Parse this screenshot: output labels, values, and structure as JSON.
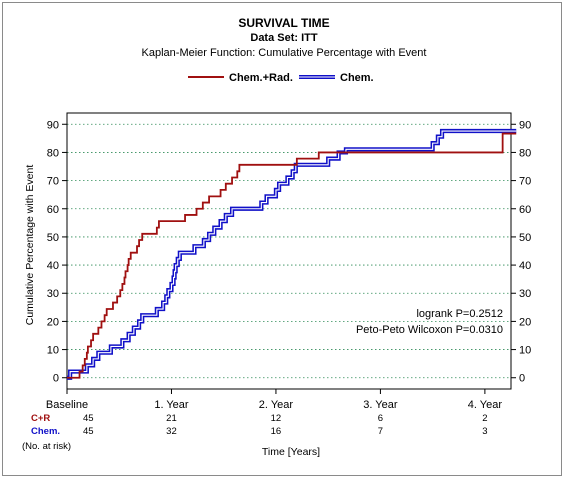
{
  "chart_data": {
    "type": "line",
    "title": "SURVIVAL TIME",
    "subtitle": "Data Set: ITT",
    "subtitle2": "Kaplan-Meier Function: Cumulative Percentage with Event",
    "xlabel": "Time [Years]",
    "ylabel": "Cumulative Percentage with Event",
    "xlim": [
      0,
      4.25
    ],
    "ylim": [
      0,
      90
    ],
    "xticks": [
      0,
      1,
      2,
      3,
      4
    ],
    "xtick_labels": [
      "Baseline",
      "1. Year",
      "2. Year",
      "3. Year",
      "4. Year"
    ],
    "yticks": [
      0,
      10,
      20,
      30,
      40,
      50,
      60,
      70,
      80,
      90
    ],
    "grid": "horizontal dotted",
    "legend_position": "top-center",
    "annotations": [
      "logrank P=0.2512",
      "Peto-Peto Wilcoxon P=0.0310"
    ],
    "series": [
      {
        "name": "Chem.+Rad.",
        "color": "#a01010",
        "step": true,
        "points": [
          [
            0,
            0
          ],
          [
            0.12,
            0
          ],
          [
            0.12,
            2.2
          ],
          [
            0.15,
            2.2
          ],
          [
            0.15,
            4.4
          ],
          [
            0.17,
            4.4
          ],
          [
            0.17,
            6.7
          ],
          [
            0.19,
            6.7
          ],
          [
            0.19,
            8.9
          ],
          [
            0.2,
            8.9
          ],
          [
            0.2,
            11.1
          ],
          [
            0.23,
            11.1
          ],
          [
            0.23,
            13.3
          ],
          [
            0.25,
            13.3
          ],
          [
            0.25,
            15.6
          ],
          [
            0.3,
            15.6
          ],
          [
            0.3,
            17.8
          ],
          [
            0.33,
            17.8
          ],
          [
            0.33,
            20
          ],
          [
            0.36,
            20
          ],
          [
            0.36,
            22.2
          ],
          [
            0.38,
            22.2
          ],
          [
            0.38,
            24.4
          ],
          [
            0.44,
            24.4
          ],
          [
            0.44,
            26.7
          ],
          [
            0.48,
            26.7
          ],
          [
            0.48,
            28.9
          ],
          [
            0.51,
            28.9
          ],
          [
            0.51,
            31.1
          ],
          [
            0.53,
            31.1
          ],
          [
            0.53,
            33.3
          ],
          [
            0.55,
            33.3
          ],
          [
            0.55,
            35.6
          ],
          [
            0.56,
            35.6
          ],
          [
            0.56,
            37.8
          ],
          [
            0.58,
            37.8
          ],
          [
            0.58,
            40
          ],
          [
            0.59,
            40
          ],
          [
            0.59,
            42.2
          ],
          [
            0.61,
            42.2
          ],
          [
            0.61,
            44.4
          ],
          [
            0.67,
            44.4
          ],
          [
            0.67,
            46.7
          ],
          [
            0.69,
            46.7
          ],
          [
            0.69,
            48.9
          ],
          [
            0.72,
            48.9
          ],
          [
            0.72,
            51.1
          ],
          [
            0.86,
            51.1
          ],
          [
            0.86,
            53.3
          ],
          [
            0.88,
            53.3
          ],
          [
            0.88,
            55.6
          ],
          [
            1.13,
            55.6
          ],
          [
            1.13,
            57.8
          ],
          [
            1.24,
            57.8
          ],
          [
            1.24,
            60
          ],
          [
            1.3,
            60
          ],
          [
            1.3,
            62.2
          ],
          [
            1.36,
            62.2
          ],
          [
            1.36,
            64.4
          ],
          [
            1.47,
            64.4
          ],
          [
            1.47,
            66.7
          ],
          [
            1.52,
            66.7
          ],
          [
            1.52,
            68.9
          ],
          [
            1.58,
            68.9
          ],
          [
            1.58,
            71.1
          ],
          [
            1.63,
            71.1
          ],
          [
            1.63,
            73.3
          ],
          [
            1.65,
            73.3
          ],
          [
            1.65,
            75.6
          ],
          [
            2.2,
            75.6
          ],
          [
            2.2,
            77.8
          ],
          [
            2.41,
            77.8
          ],
          [
            2.41,
            80
          ],
          [
            4.17,
            80
          ],
          [
            4.17,
            86.7
          ],
          [
            4.3,
            86.7
          ]
        ]
      },
      {
        "name": "Chem.",
        "color": "#1010c8",
        "step": true,
        "points": [
          [
            0,
            0
          ],
          [
            0.03,
            0
          ],
          [
            0.03,
            2.2
          ],
          [
            0.19,
            2.2
          ],
          [
            0.19,
            4.4
          ],
          [
            0.25,
            4.4
          ],
          [
            0.25,
            6.7
          ],
          [
            0.3,
            6.7
          ],
          [
            0.3,
            8.9
          ],
          [
            0.42,
            8.9
          ],
          [
            0.42,
            11.1
          ],
          [
            0.53,
            11.1
          ],
          [
            0.53,
            13.3
          ],
          [
            0.59,
            13.3
          ],
          [
            0.59,
            15.6
          ],
          [
            0.64,
            15.6
          ],
          [
            0.64,
            17.8
          ],
          [
            0.69,
            17.8
          ],
          [
            0.69,
            20
          ],
          [
            0.72,
            20
          ],
          [
            0.72,
            22.2
          ],
          [
            0.86,
            22.2
          ],
          [
            0.86,
            24.4
          ],
          [
            0.92,
            24.4
          ],
          [
            0.92,
            26.7
          ],
          [
            0.95,
            26.7
          ],
          [
            0.95,
            28.9
          ],
          [
            0.97,
            28.9
          ],
          [
            0.97,
            31.1
          ],
          [
            1.0,
            31.1
          ],
          [
            1.0,
            33.3
          ],
          [
            1.02,
            33.3
          ],
          [
            1.02,
            35.6
          ],
          [
            1.03,
            35.6
          ],
          [
            1.03,
            37.8
          ],
          [
            1.04,
            37.8
          ],
          [
            1.04,
            40
          ],
          [
            1.06,
            40
          ],
          [
            1.06,
            42.2
          ],
          [
            1.08,
            42.2
          ],
          [
            1.08,
            44.4
          ],
          [
            1.22,
            44.4
          ],
          [
            1.22,
            46.7
          ],
          [
            1.31,
            46.7
          ],
          [
            1.31,
            48.9
          ],
          [
            1.36,
            48.9
          ],
          [
            1.36,
            51.1
          ],
          [
            1.41,
            51.1
          ],
          [
            1.41,
            53.3
          ],
          [
            1.47,
            53.3
          ],
          [
            1.47,
            55.6
          ],
          [
            1.52,
            55.6
          ],
          [
            1.52,
            57.8
          ],
          [
            1.58,
            57.8
          ],
          [
            1.58,
            60
          ],
          [
            1.86,
            60
          ],
          [
            1.86,
            62.2
          ],
          [
            1.91,
            62.2
          ],
          [
            1.91,
            64.4
          ],
          [
            2.0,
            64.4
          ],
          [
            2.0,
            66.7
          ],
          [
            2.03,
            66.7
          ],
          [
            2.03,
            68.9
          ],
          [
            2.11,
            68.9
          ],
          [
            2.11,
            71.1
          ],
          [
            2.16,
            71.1
          ],
          [
            2.16,
            73.3
          ],
          [
            2.19,
            73.3
          ],
          [
            2.19,
            75.6
          ],
          [
            2.5,
            75.6
          ],
          [
            2.5,
            77.8
          ],
          [
            2.6,
            77.8
          ],
          [
            2.6,
            80
          ],
          [
            2.67,
            80
          ],
          [
            2.67,
            81.1
          ],
          [
            3.5,
            81.1
          ],
          [
            3.5,
            83.3
          ],
          [
            3.55,
            83.3
          ],
          [
            3.55,
            85.6
          ],
          [
            3.59,
            85.6
          ],
          [
            3.59,
            87.6
          ],
          [
            4.3,
            87.6
          ]
        ]
      }
    ],
    "at_risk": {
      "label": "(No. at risk)",
      "rows": [
        {
          "name": "C+R",
          "color": "#a01010",
          "values": [
            "45",
            "21",
            "12",
            "6",
            "2"
          ]
        },
        {
          "name": "Chem.",
          "color": "#1010c8",
          "values": [
            "45",
            "32",
            "16",
            "7",
            "3"
          ]
        }
      ]
    }
  }
}
